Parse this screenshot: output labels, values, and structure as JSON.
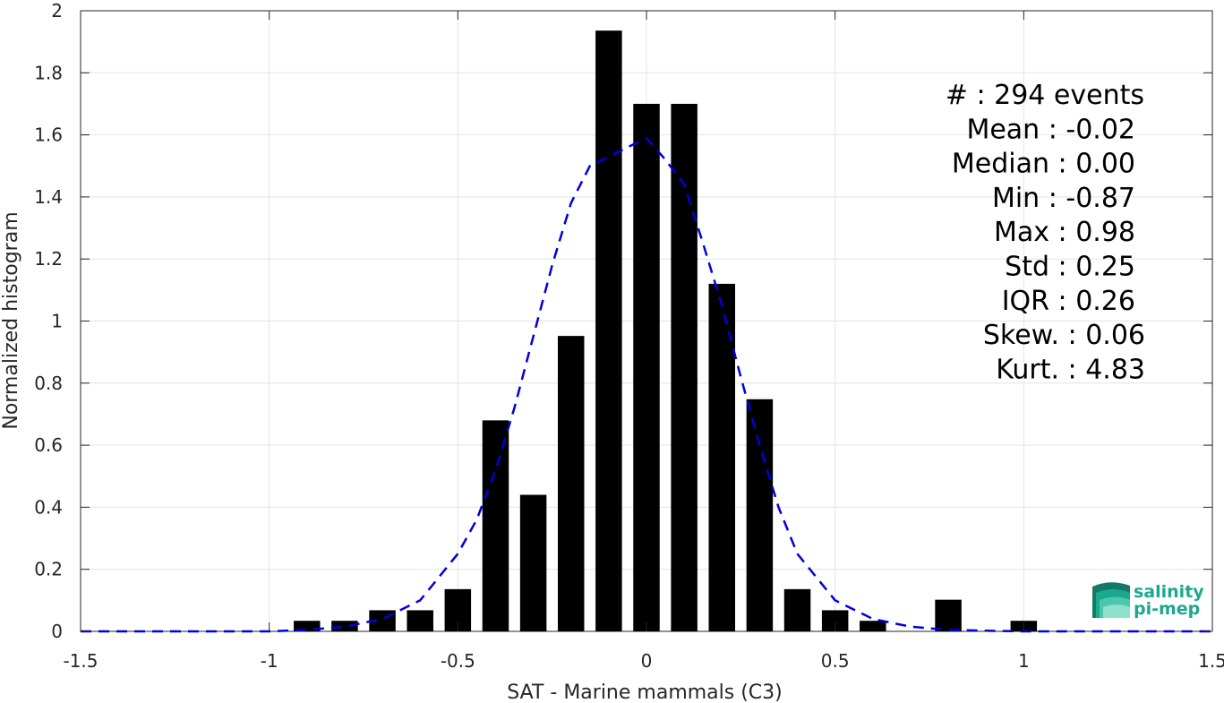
{
  "chart_data": {
    "type": "bar",
    "title": "",
    "xlabel": "SAT - Marine mammals (C3)",
    "ylabel": "Normalized histogram",
    "xlim": [
      -1.5,
      1.5
    ],
    "ylim": [
      0,
      2
    ],
    "x_ticks": [
      -1.5,
      -1,
      -0.5,
      0,
      0.5,
      1,
      1.5
    ],
    "x_tick_labels": [
      "-1.5",
      "-1",
      "-0.5",
      "0",
      "0.5",
      "1",
      "1.5"
    ],
    "y_ticks": [
      0,
      0.2,
      0.4,
      0.6,
      0.8,
      1,
      1.2,
      1.4,
      1.6,
      1.8,
      2
    ],
    "y_tick_labels": [
      "0",
      "0.2",
      "0.4",
      "0.6",
      "0.8",
      "1",
      "1.2",
      "1.4",
      "1.6",
      "1.8",
      "2"
    ],
    "grid": true,
    "bar_width": 0.07,
    "bar_color": "#000000",
    "bars": {
      "x": [
        -0.9,
        -0.8,
        -0.7,
        -0.6,
        -0.5,
        -0.4,
        -0.3,
        -0.2,
        -0.1,
        0.0,
        0.1,
        0.2,
        0.3,
        0.4,
        0.5,
        0.6,
        0.8,
        1.0
      ],
      "values": [
        0.034,
        0.034,
        0.068,
        0.068,
        0.136,
        0.68,
        0.44,
        0.952,
        1.936,
        1.7,
        1.7,
        1.12,
        0.748,
        0.136,
        0.068,
        0.034,
        0.102,
        0.034
      ]
    },
    "fit_line": {
      "style": "dashed",
      "color": "#0000dd",
      "x": [
        -1.5,
        -1.4,
        -1.3,
        -1.2,
        -1.1,
        -1.0,
        -0.9,
        -0.8,
        -0.7,
        -0.6,
        -0.5,
        -0.45,
        -0.4,
        -0.35,
        -0.3,
        -0.25,
        -0.2,
        -0.15,
        -0.1,
        -0.05,
        0.0,
        0.05,
        0.1,
        0.15,
        0.2,
        0.25,
        0.3,
        0.35,
        0.4,
        0.5,
        0.6,
        0.7,
        0.8,
        0.9,
        1.0,
        1.1,
        1.2,
        1.3,
        1.4,
        1.5
      ],
      "y": [
        0,
        0,
        0,
        0,
        0,
        0,
        0.005,
        0.015,
        0.04,
        0.1,
        0.25,
        0.36,
        0.52,
        0.72,
        0.95,
        1.18,
        1.38,
        1.5,
        1.53,
        1.56,
        1.59,
        1.52,
        1.44,
        1.25,
        1.05,
        0.82,
        0.6,
        0.4,
        0.25,
        0.1,
        0.04,
        0.015,
        0.005,
        0.002,
        0,
        0,
        0,
        0,
        0,
        0
      ]
    },
    "stats": [
      {
        "label": "#  : 294 events"
      },
      {
        "label": "Mean : -0.02"
      },
      {
        "label": "Median : 0.00"
      },
      {
        "label": "Min : -0.87"
      },
      {
        "label": "Max : 0.98"
      },
      {
        "label": "Std : 0.25"
      },
      {
        "label": "IQR : 0.26"
      },
      {
        "label": "Skew. : 0.06"
      },
      {
        "label": "Kurt. : 4.83"
      }
    ]
  },
  "logo": {
    "line1": "salinity",
    "line2": "pi-mep",
    "color": "#1aa88f"
  }
}
